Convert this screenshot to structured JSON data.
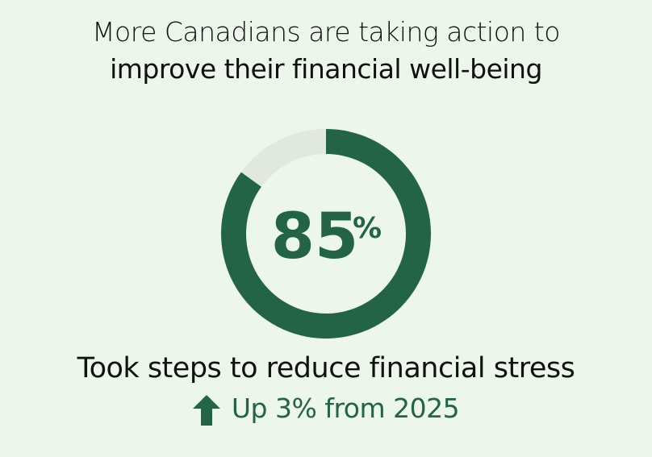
{
  "title_line1": "More Canadians are taking action to",
  "title_line2": "improve their financial well-being",
  "chart_data": {
    "type": "pie",
    "style": "donut",
    "values": [
      85,
      15
    ],
    "center_label": "85",
    "center_unit": "%",
    "caption": "Took steps to reduce financial stress",
    "change": {
      "direction": "up",
      "icon": "arrow-up-icon",
      "text": "Up 3% from 2025"
    },
    "colors": {
      "filled": "#236446",
      "remainder": "#e1e8e0",
      "background": "#ecf6eb"
    }
  }
}
